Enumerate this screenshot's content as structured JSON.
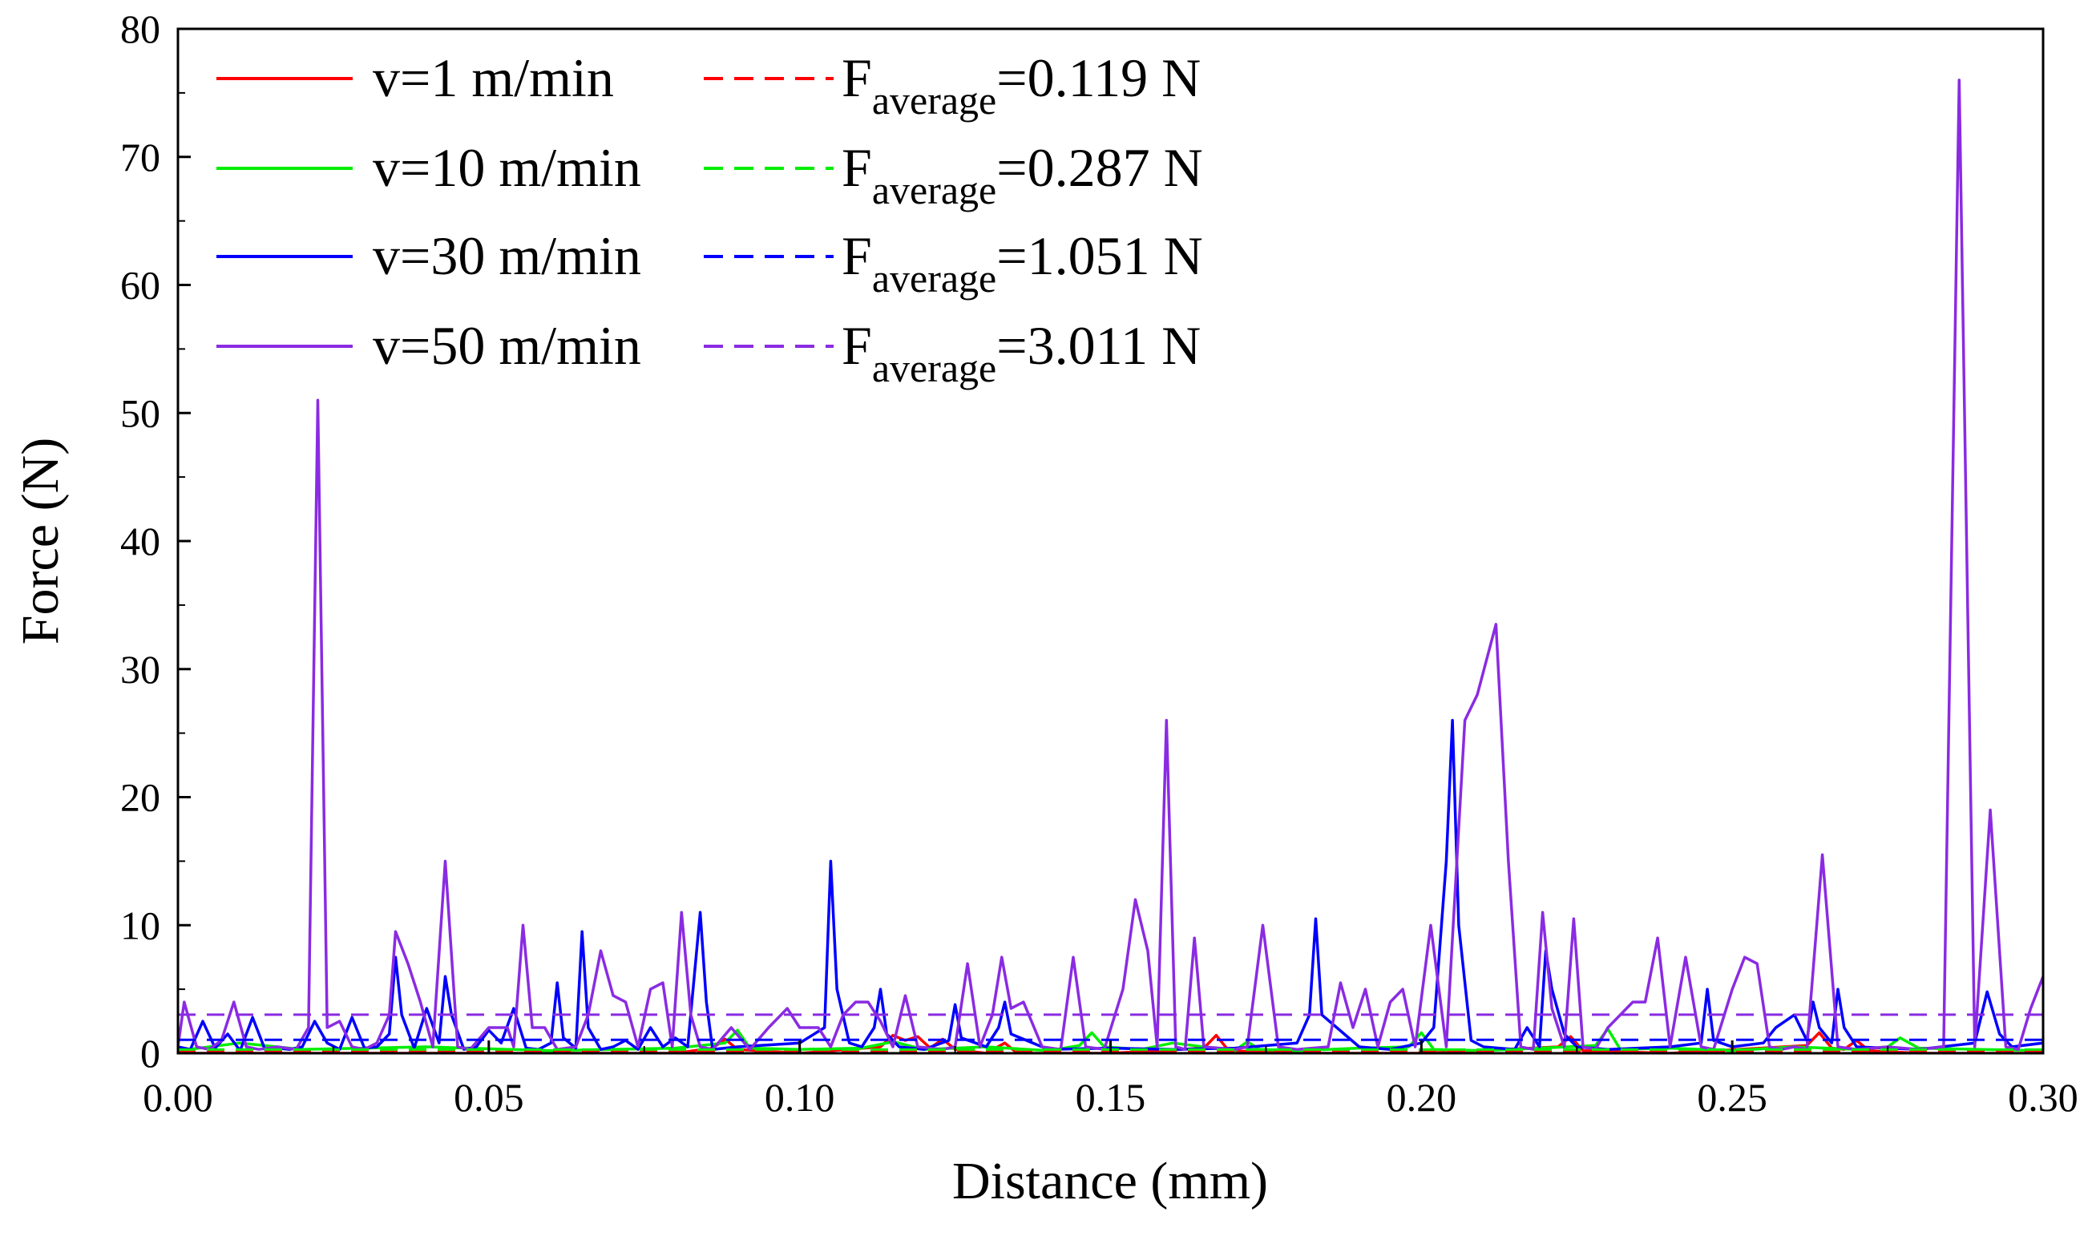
{
  "chart_data": {
    "type": "line",
    "title": "",
    "xlabel": "Distance (mm)",
    "ylabel": "Force (N)",
    "xlim": [
      0,
      0.3
    ],
    "ylim": [
      0,
      80
    ],
    "xticks": [
      "0.00",
      "0.05",
      "0.10",
      "0.15",
      "0.20",
      "0.25",
      "0.30"
    ],
    "xtick_values": [
      0,
      0.05,
      0.1,
      0.15,
      0.2,
      0.25,
      0.3
    ],
    "yticks": [
      "0",
      "10",
      "20",
      "30",
      "40",
      "50",
      "60",
      "70",
      "80"
    ],
    "ytick_values": [
      0,
      10,
      20,
      30,
      40,
      50,
      60,
      70,
      80
    ],
    "grid": false,
    "legend_position": "top-left",
    "series": [
      {
        "name": "v=1 m/min",
        "color": "#ff0000",
        "average_label_main": "F",
        "average_label_sub": "average",
        "average_label_value": "=0.119 N",
        "average": 0.119,
        "x": [
          0,
          0.02,
          0.04,
          0.06,
          0.08,
          0.086,
          0.088,
          0.09,
          0.1,
          0.113,
          0.115,
          0.117,
          0.119,
          0.121,
          0.123,
          0.125,
          0.13,
          0.133,
          0.135,
          0.15,
          0.165,
          0.167,
          0.169,
          0.18,
          0.2,
          0.222,
          0.224,
          0.226,
          0.24,
          0.262,
          0.264,
          0.266,
          0.268,
          0.27,
          0.272,
          0.28,
          0.3
        ],
        "y": [
          0,
          0,
          0,
          0,
          0,
          0.4,
          1.1,
          0.3,
          0,
          0.5,
          1.4,
          1.0,
          1.3,
          0.4,
          1.1,
          0.3,
          0,
          0.8,
          0,
          0,
          0.4,
          1.4,
          0.2,
          0,
          0,
          0.5,
          1.3,
          0.2,
          0,
          0.6,
          1.6,
          0.4,
          0.3,
          1.0,
          0.2,
          0,
          0
        ]
      },
      {
        "name": "v=10 m/min",
        "color": "#00ee00",
        "average_label_main": "F",
        "average_label_sub": "average",
        "average_label_value": "=0.287 N",
        "average": 0.287,
        "x": [
          0,
          0.01,
          0.02,
          0.04,
          0.06,
          0.08,
          0.088,
          0.09,
          0.092,
          0.1,
          0.11,
          0.115,
          0.12,
          0.13,
          0.14,
          0.145,
          0.147,
          0.149,
          0.155,
          0.16,
          0.17,
          0.172,
          0.174,
          0.18,
          0.19,
          0.198,
          0.2,
          0.202,
          0.21,
          0.228,
          0.23,
          0.232,
          0.24,
          0.25,
          0.26,
          0.27,
          0.275,
          0.277,
          0.28,
          0.29,
          0.3
        ],
        "y": [
          0.2,
          0.8,
          0.3,
          0.5,
          0.2,
          0.4,
          0.8,
          1.8,
          0.4,
          0.3,
          0.4,
          0.9,
          0.3,
          0.5,
          0.2,
          0.6,
          1.6,
          0.5,
          0.3,
          0.8,
          0.2,
          0.9,
          0.3,
          0.2,
          0.4,
          0.5,
          1.6,
          0.3,
          0.2,
          0.6,
          1.9,
          0.3,
          0.4,
          0.2,
          0.5,
          0.3,
          0.5,
          1.2,
          0.4,
          0.3,
          0.2
        ]
      },
      {
        "name": "v=30 m/min",
        "color": "#0000ff",
        "average_label_main": "F",
        "average_label_sub": "average",
        "average_label_value": "=1.051 N",
        "average": 1.051,
        "x": [
          0,
          0.002,
          0.004,
          0.006,
          0.008,
          0.01,
          0.012,
          0.014,
          0.016,
          0.018,
          0.02,
          0.022,
          0.024,
          0.026,
          0.028,
          0.03,
          0.032,
          0.034,
          0.035,
          0.036,
          0.038,
          0.04,
          0.042,
          0.043,
          0.044,
          0.046,
          0.048,
          0.05,
          0.052,
          0.054,
          0.056,
          0.058,
          0.06,
          0.061,
          0.062,
          0.064,
          0.065,
          0.066,
          0.068,
          0.07,
          0.072,
          0.074,
          0.076,
          0.078,
          0.08,
          0.082,
          0.084,
          0.085,
          0.086,
          0.09,
          0.1,
          0.104,
          0.105,
          0.106,
          0.108,
          0.11,
          0.112,
          0.113,
          0.114,
          0.116,
          0.12,
          0.124,
          0.125,
          0.126,
          0.13,
          0.132,
          0.133,
          0.134,
          0.14,
          0.15,
          0.16,
          0.17,
          0.18,
          0.182,
          0.183,
          0.184,
          0.19,
          0.195,
          0.2,
          0.202,
          0.204,
          0.205,
          0.206,
          0.208,
          0.21,
          0.215,
          0.217,
          0.219,
          0.22,
          0.221,
          0.223,
          0.225,
          0.23,
          0.24,
          0.245,
          0.246,
          0.247,
          0.25,
          0.255,
          0.257,
          0.26,
          0.262,
          0.263,
          0.264,
          0.266,
          0.267,
          0.268,
          0.27,
          0.28,
          0.289,
          0.291,
          0.293,
          0.295,
          0.3
        ],
        "y": [
          0.5,
          0.3,
          2.5,
          0.4,
          1.5,
          0.2,
          2.8,
          0.3,
          0.4,
          0.3,
          0.5,
          2.5,
          0.8,
          0.3,
          2.8,
          0.4,
          0.5,
          1.5,
          7.5,
          3.0,
          0.4,
          3.5,
          0.8,
          6.0,
          3.0,
          0.3,
          0.5,
          1.8,
          0.8,
          3.5,
          0.4,
          0.3,
          0.8,
          5.5,
          1.2,
          0.4,
          9.5,
          2.0,
          0.3,
          0.5,
          1.0,
          0.3,
          2.0,
          0.5,
          1.2,
          0.5,
          11.0,
          4.0,
          0.3,
          0.5,
          0.8,
          2.0,
          15.0,
          5.0,
          0.8,
          0.5,
          2.0,
          5.0,
          1.5,
          0.5,
          0.3,
          1.0,
          3.8,
          1.2,
          0.5,
          2.0,
          4.0,
          1.5,
          0.3,
          0.4,
          0.3,
          0.4,
          0.8,
          3.0,
          10.5,
          3.0,
          0.5,
          0.3,
          0.8,
          2.0,
          15.0,
          26.0,
          10.0,
          1.0,
          0.5,
          0.3,
          2.0,
          0.5,
          8.0,
          5.0,
          1.5,
          0.5,
          0.3,
          0.5,
          0.8,
          5.0,
          1.0,
          0.5,
          0.8,
          2.0,
          3.0,
          1.0,
          4.0,
          2.0,
          0.8,
          5.0,
          2.0,
          0.5,
          0.3,
          0.8,
          4.8,
          1.5,
          0.5,
          0.8
        ]
      },
      {
        "name": "v=50 m/min",
        "color": "#8a2be2",
        "average_label_main": "F",
        "average_label_sub": "average",
        "average_label_value": "=3.011 N",
        "average": 3.011,
        "x": [
          0,
          0.001,
          0.003,
          0.005,
          0.007,
          0.009,
          0.011,
          0.013,
          0.016,
          0.019,
          0.021,
          0.0225,
          0.024,
          0.026,
          0.028,
          0.03,
          0.032,
          0.034,
          0.035,
          0.037,
          0.039,
          0.041,
          0.043,
          0.045,
          0.047,
          0.05,
          0.053,
          0.054,
          0.0555,
          0.057,
          0.059,
          0.061,
          0.064,
          0.066,
          0.068,
          0.07,
          0.072,
          0.074,
          0.076,
          0.078,
          0.0795,
          0.081,
          0.0825,
          0.084,
          0.086,
          0.089,
          0.092,
          0.095,
          0.098,
          0.1,
          0.103,
          0.105,
          0.107,
          0.109,
          0.111,
          0.113,
          0.115,
          0.117,
          0.119,
          0.123,
          0.125,
          0.127,
          0.129,
          0.131,
          0.1325,
          0.134,
          0.136,
          0.139,
          0.142,
          0.144,
          0.146,
          0.149,
          0.152,
          0.154,
          0.156,
          0.1575,
          0.159,
          0.1605,
          0.162,
          0.1635,
          0.165,
          0.17,
          0.172,
          0.1745,
          0.177,
          0.18,
          0.185,
          0.187,
          0.189,
          0.191,
          0.193,
          0.195,
          0.197,
          0.199,
          0.2015,
          0.204,
          0.207,
          0.209,
          0.212,
          0.214,
          0.216,
          0.218,
          0.2195,
          0.221,
          0.223,
          0.2245,
          0.226,
          0.228,
          0.23,
          0.232,
          0.234,
          0.236,
          0.238,
          0.24,
          0.2425,
          0.245,
          0.247,
          0.25,
          0.252,
          0.254,
          0.256,
          0.258,
          0.26,
          0.262,
          0.2645,
          0.267,
          0.27,
          0.275,
          0.28,
          0.284,
          0.2865,
          0.289,
          0.2915,
          0.294,
          0.296,
          0.298,
          0.3
        ],
        "y": [
          0.5,
          4.0,
          0.5,
          0.3,
          1.0,
          4.0,
          0.5,
          0.3,
          0.5,
          0.3,
          2.0,
          51.0,
          2.0,
          2.5,
          0.5,
          0.3,
          0.8,
          3.0,
          9.5,
          7.0,
          4.0,
          0.5,
          15.0,
          0.5,
          0.3,
          2.0,
          2.0,
          0.5,
          10.0,
          2.0,
          2.0,
          0.3,
          0.5,
          3.0,
          8.0,
          4.5,
          4.0,
          0.5,
          5.0,
          5.5,
          0.5,
          11.0,
          3.0,
          0.5,
          0.3,
          2.0,
          0.3,
          2.0,
          3.5,
          2.0,
          2.0,
          0.5,
          3.0,
          4.0,
          4.0,
          2.5,
          0.5,
          4.5,
          0.5,
          0.3,
          0.5,
          7.0,
          0.5,
          3.0,
          7.5,
          3.5,
          4.0,
          0.5,
          0.3,
          7.5,
          0.5,
          0.3,
          5.0,
          12.0,
          8.0,
          0.5,
          26.0,
          0.5,
          0.3,
          9.0,
          0.5,
          0.3,
          0.5,
          10.0,
          0.5,
          0.3,
          0.5,
          5.5,
          2.0,
          5.0,
          0.5,
          4.0,
          5.0,
          0.5,
          10.0,
          0.5,
          26.0,
          28.0,
          33.5,
          15.0,
          0.5,
          0.3,
          11.0,
          3.5,
          0.5,
          10.5,
          0.5,
          0.3,
          2.0,
          3.0,
          4.0,
          4.0,
          9.0,
          0.5,
          7.5,
          0.5,
          0.3,
          5.0,
          7.5,
          7.0,
          0.5,
          0.3,
          0.5,
          0.3,
          15.5,
          0.5,
          0.3,
          0.5,
          0.3,
          0.5,
          76.0,
          0.5,
          19.0,
          0.5,
          0.3,
          3.5,
          6.0
        ]
      }
    ]
  }
}
